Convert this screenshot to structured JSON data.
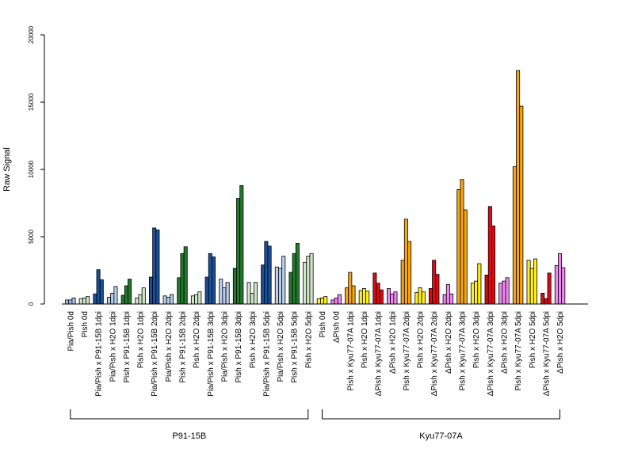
{
  "chart_data": {
    "type": "bar",
    "ylabel": "Raw Signal",
    "ylim": [
      0,
      20000
    ],
    "yticks": [
      0,
      5000,
      10000,
      15000,
      20000
    ],
    "grid": false,
    "categories": [
      "Pia/Pish 0d",
      "Pish 0d",
      "Pia/Pish x P91-15B 1dpi",
      "Pia/Pish x H2O 1dpi",
      "Pish x P91-15B 1dpi",
      "Pish x H2O 1dpi",
      "Pia/Pish x P91-15B 2dpi",
      "Pia/Pish x H2O 2dpi",
      "Pish x P91-15B 2dpi",
      "Pish x H2O 2dpi",
      "Pia/Pish x P91-15B 3dpi",
      "Pia/Pish x H2O 3dpi",
      "Pish x P91-15B 3dpi",
      "Pish x H2O 3dpi",
      "Pia/Pish x P91-15B 5dpi",
      "Pia/Pish x H2O 5dpi",
      "Pish x P91-15B 5dpi",
      "Pish x H2O 5dpi",
      "Pish 0d",
      "ΔPish 0d",
      "Pish x Kyu77-07A 1dpi",
      "Pish x H2O 1dpi",
      "ΔPish x Kyu77-07A 1dpi",
      "ΔPish x H2O 1dpi",
      "Pish x Kyu77-07A 2dpi",
      "Pish x H2O 2dpi",
      "ΔPish x Kyu77-07A 2dpi",
      "ΔPish x H2O 2dpi",
      "Pish x Kyu77-07A 3dpi",
      "Pish x H2O 3dpi",
      "ΔPish x Kyu77-07A 3dpi",
      "ΔPish x H2O 3dpi",
      "Pish x Kyu77-07A 5dpi",
      "Pish x H2O 5dpi",
      "ΔPish x Kyu77-07A 5dpi",
      "ΔPish x H2O 5dpi"
    ],
    "values": [
      [
        300,
        300,
        450
      ],
      [
        400,
        450,
        550
      ],
      [
        750,
        2550,
        1800
      ],
      [
        500,
        800,
        1300
      ],
      [
        650,
        1350,
        1850
      ],
      [
        450,
        700,
        1200
      ],
      [
        2000,
        5650,
        5500
      ],
      [
        600,
        500,
        700
      ],
      [
        1950,
        3750,
        4250
      ],
      [
        600,
        700,
        900
      ],
      [
        2000,
        3750,
        3500
      ],
      [
        1850,
        1200,
        1600
      ],
      [
        2650,
        7850,
        8800
      ],
      [
        1600,
        800,
        1600
      ],
      [
        2900,
        4650,
        4300
      ],
      [
        2750,
        2650,
        3550
      ],
      [
        2350,
        3750,
        4500
      ],
      [
        3100,
        3550,
        3750
      ],
      [
        400,
        450,
        550
      ],
      [
        300,
        450,
        700
      ],
      [
        1200,
        2350,
        1350
      ],
      [
        1000,
        1150,
        950
      ],
      [
        2300,
        1550,
        1050
      ],
      [
        1150,
        750,
        900
      ],
      [
        3250,
        6300,
        4650
      ],
      [
        850,
        1200,
        900
      ],
      [
        1150,
        3250,
        2200
      ],
      [
        700,
        1450,
        750
      ],
      [
        8500,
        9250,
        7000
      ],
      [
        1550,
        1700,
        3000
      ],
      [
        2150,
        7250,
        5800
      ],
      [
        1550,
        1700,
        1950
      ],
      [
        10200,
        17350,
        14700
      ],
      [
        3250,
        2650,
        3350
      ],
      [
        800,
        400,
        2300
      ],
      [
        2850,
        3750,
        2700
      ]
    ],
    "colors": [
      "#a9c2e8",
      "#d2e6c9",
      "#1a4f9c",
      "#b9cdec",
      "#237a2c",
      "#d2e6c9",
      "#1a4f9c",
      "#b9cdec",
      "#237a2c",
      "#d2e6c9",
      "#1a4f9c",
      "#b9cdec",
      "#237a2c",
      "#d2e6c9",
      "#1a4f9c",
      "#b9cdec",
      "#237a2c",
      "#d2e6c9",
      "#ffee22",
      "#ee88ee",
      "#f5a516",
      "#ffee22",
      "#dd0a14",
      "#ee88ee",
      "#f5a516",
      "#ffee22",
      "#dd0a14",
      "#ee88ee",
      "#f5a516",
      "#ffee22",
      "#dd0a14",
      "#ee88ee",
      "#f5a516",
      "#ffee22",
      "#dd0a14",
      "#ee88ee"
    ],
    "groups": [
      {
        "label": "P91-15B",
        "start": 0,
        "end": 17
      },
      {
        "label": "Kyu77-07A",
        "start": 18,
        "end": 35
      }
    ]
  }
}
